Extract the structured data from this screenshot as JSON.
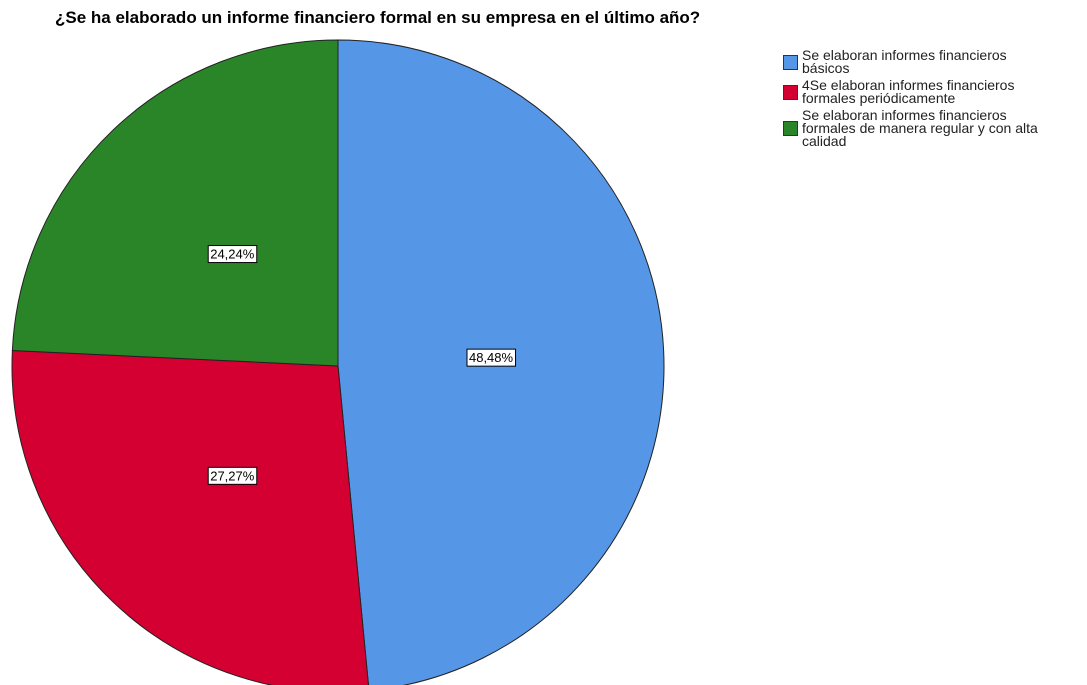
{
  "chart_data": {
    "type": "pie",
    "title": "¿Se ha elaborado un informe financiero formal en su empresa en el último año?",
    "categories": [
      "Se elaboran informes financieros básicos",
      "4Se elaboran informes financieros formales periódicamente",
      "Se elaboran informes financieros formales de manera regular y con alta calidad"
    ],
    "values": [
      48.48,
      27.27,
      24.24
    ],
    "value_labels": [
      "48,48%",
      "27,27%",
      "24,24%"
    ],
    "colors": [
      "#5596e6",
      "#d50032",
      "#2a8529"
    ]
  }
}
